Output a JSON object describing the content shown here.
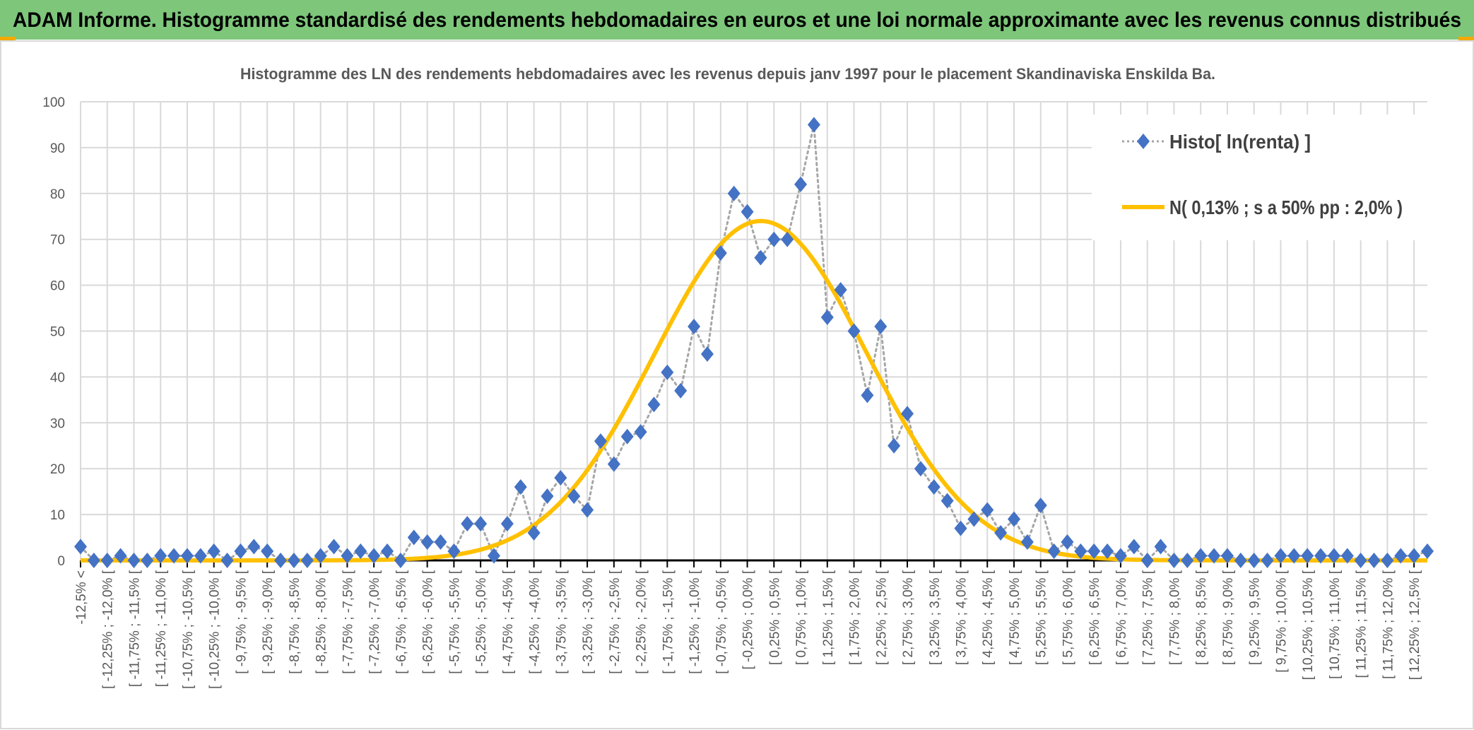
{
  "header": {
    "title": "ADAM Informe. Histogramme standardisé des rendements hebdomadaires en euros et une loi normale approximante avec les revenus connus distribués"
  },
  "colors": {
    "header_bg": "#7dc67a",
    "accent_orange": "#f5a800",
    "series_marker": "#4472c4",
    "series_line": "#a6a6a6",
    "normal_curve": "#ffc000",
    "grid": "#d9d9d9"
  },
  "chart_data": {
    "type": "line",
    "title": "Histogramme des LN des rendements hebdomadaires avec les revenus depuis janv 1997 pour le placement Skandinaviska Enskilda Ba.",
    "xlabel": "",
    "ylabel": "",
    "ylim": [
      0,
      100
    ],
    "yticks": [
      0,
      10,
      20,
      30,
      40,
      50,
      60,
      70,
      80,
      90,
      100
    ],
    "grid": true,
    "legend_position": "top-right",
    "x_tick_labels": [
      "-12,5% <",
      "[ -12,25% ; -12,0% [",
      "[ -11,75% ; -11,5% [",
      "[ -11,25% ; -11,0% [",
      "[ -10,75% ; -10,5% [",
      "[ -10,25% ; -10,0% [",
      "[ -9,75% ; -9,5% [",
      "[ -9,25% ; -9,0% [",
      "[ -8,75% ; -8,5% [",
      "[ -8,25% ; -8,0% [",
      "[ -7,75% ; -7,5% [",
      "[ -7,25% ; -7,0% [",
      "[ -6,75% ; -6,5% [",
      "[ -6,25% ; -6,0% [",
      "[ -5,75% ; -5,5% [",
      "[ -5,25% ; -5,0% [",
      "[ -4,75% ; -4,5% [",
      "[ -4,25% ; -4,0% [",
      "[ -3,75% ; -3,5% [",
      "[ -3,25% ; -3,0% [",
      "[ -2,75% ; -2,5% [",
      "[ -2,25% ; -2,0% [",
      "[ -1,75% ; -1,5% [",
      "[ -1,25% ; -1,0% [",
      "[ -0,75% ; -0,5% [",
      "[ -0,25% ; 0,0% [",
      "[ 0,25% ; 0,5% [",
      "[ 0,75% ; 1,0% [",
      "[ 1,25% ; 1,5% [",
      "[ 1,75% ; 2,0% [",
      "[ 2,25% ; 2,5% [",
      "[ 2,75% ; 3,0% [",
      "[ 3,25% ; 3,5% [",
      "[ 3,75% ; 4,0% [",
      "[ 4,25% ; 4,5% [",
      "[ 4,75% ; 5,0% [",
      "[ 5,25% ; 5,5% [",
      "[ 5,75% ; 6,0% [",
      "[ 6,25% ; 6,5% [",
      "[ 6,75% ; 7,0% [",
      "[ 7,25% ; 7,5% [",
      "[ 7,75% ; 8,0% [",
      "[ 8,25% ; 8,5% [",
      "[ 8,75% ; 9,0% [",
      "[ 9,25% ; 9,5% [",
      "[ 9,75% ; 10,0% [",
      "[ 10,25% ; 10,5% [",
      "[ 10,75% ; 11,0% [",
      "[ 11,25% ; 11,5% [",
      "[ 11,75% ; 12,0% [",
      "[ 12,25% ; 12,5% ["
    ],
    "series": [
      {
        "name": "Histo[ ln(renta) ]",
        "style": "dotted line with diamond markers",
        "values": [
          3,
          0,
          0,
          1,
          0,
          0,
          1,
          1,
          1,
          1,
          2,
          0,
          2,
          3,
          2,
          0,
          0,
          0,
          1,
          3,
          1,
          2,
          1,
          2,
          0,
          5,
          4,
          4,
          2,
          8,
          8,
          1,
          8,
          16,
          6,
          14,
          18,
          14,
          11,
          26,
          21,
          27,
          28,
          34,
          41,
          37,
          51,
          45,
          67,
          80,
          76,
          66,
          70,
          70,
          82,
          95,
          53,
          59,
          50,
          36,
          51,
          25,
          32,
          20,
          16,
          13,
          7,
          9,
          11,
          6,
          9,
          4,
          12,
          2,
          4,
          2,
          2,
          2,
          1,
          3,
          0,
          3,
          0,
          0,
          1,
          1,
          1,
          0,
          0,
          0,
          1,
          1,
          1,
          1,
          1,
          1,
          0,
          0,
          0,
          1,
          1,
          2
        ]
      },
      {
        "name": "N( 0,13% ; s a 50% pp : 2,0% )",
        "style": "smooth solid line",
        "mean_pct": 0.13,
        "sigma_pct": 2.0
      }
    ]
  }
}
